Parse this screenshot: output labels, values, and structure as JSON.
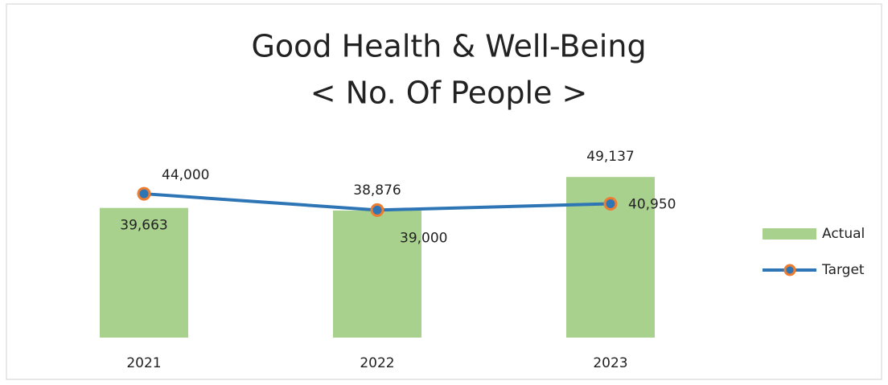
{
  "chart_data": {
    "type": "bar",
    "title": [
      "Good Health & Well-Being",
      "< No. Of People >"
    ],
    "categories": [
      "2021",
      "2022",
      "2023"
    ],
    "series": [
      {
        "name": "Actual",
        "type": "bar",
        "color": "#a9d18e",
        "values": [
          39663,
          38876,
          49137
        ],
        "value_labels": [
          "39,663",
          "38,876",
          "49,137"
        ]
      },
      {
        "name": "Target",
        "type": "line",
        "color": "#2e75b6",
        "marker_color": "#ed7d31",
        "values": [
          44000,
          39000,
          40950
        ],
        "value_labels": [
          "44,000",
          "39,000",
          "40,950"
        ]
      }
    ],
    "ylim": [
      0,
      60000
    ],
    "legend": "right"
  }
}
